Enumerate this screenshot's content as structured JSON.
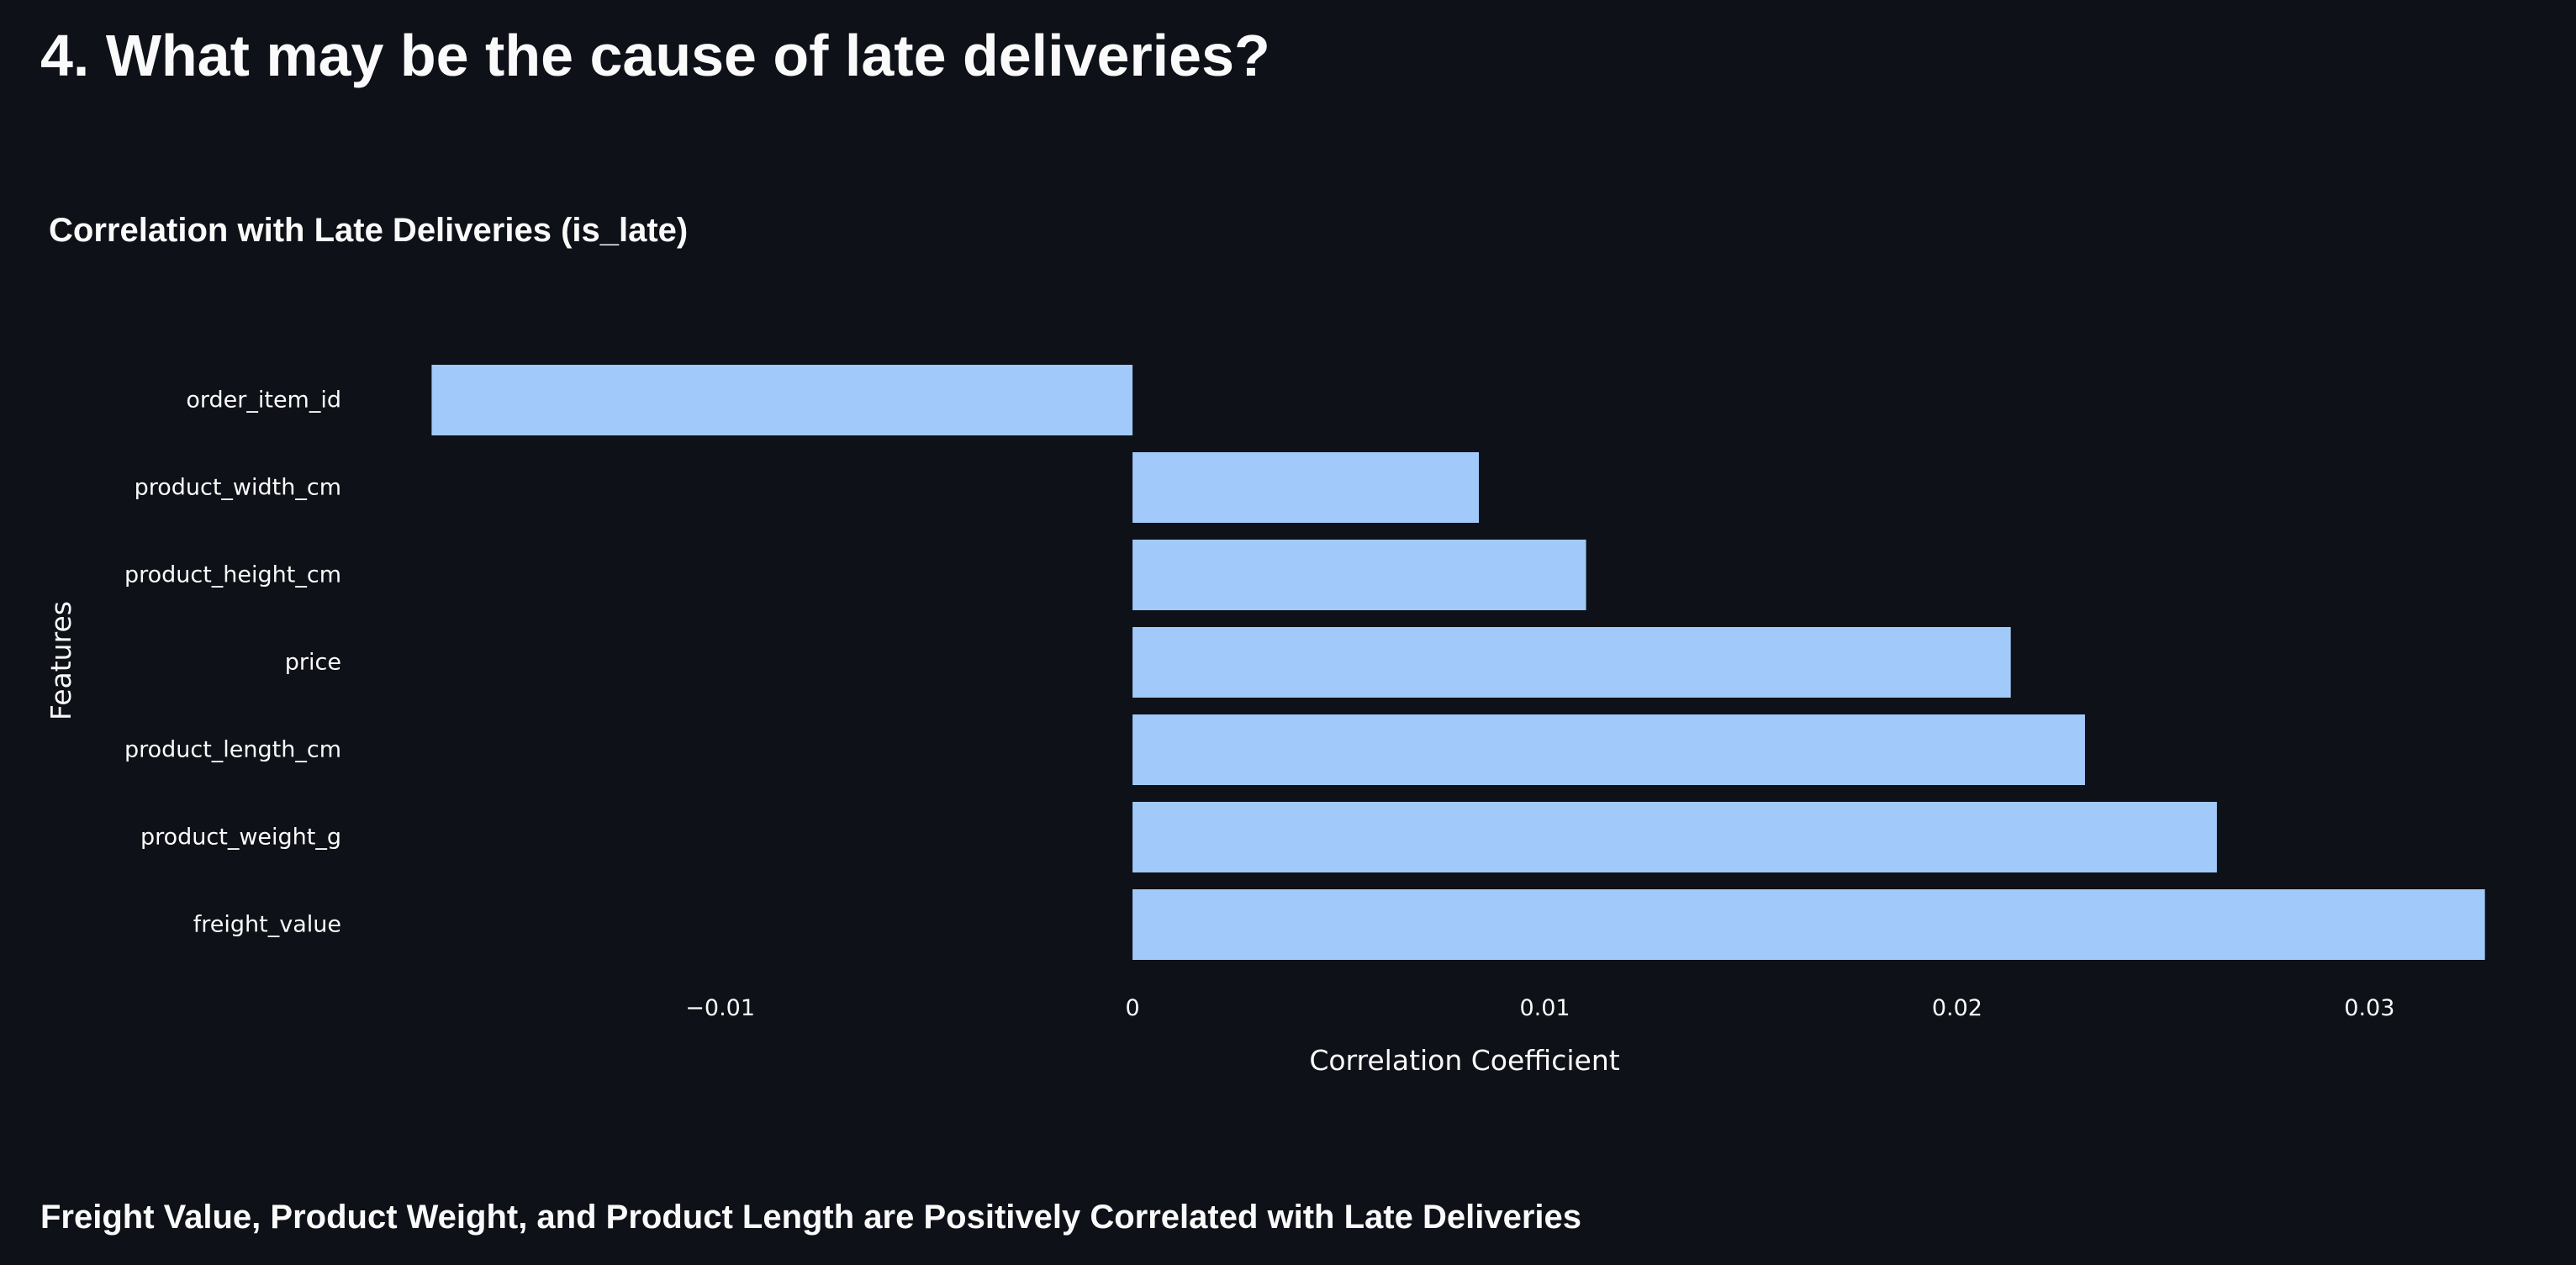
{
  "page": {
    "title": "4. What may be the cause of late deliveries?",
    "caption": "Freight Value, Product Weight, and Product Length are Positively Correlated with Late Deliveries"
  },
  "chart_data": {
    "type": "bar",
    "orientation": "horizontal",
    "title": "Correlation with Late Deliveries (is_late)",
    "xlabel": "Correlation Coefficient",
    "ylabel": "Features",
    "categories": [
      "order_item_id",
      "product_width_cm",
      "product_height_cm",
      "price",
      "product_length_cm",
      "product_weight_g",
      "freight_value"
    ],
    "values": [
      -0.017,
      0.0084,
      0.011,
      0.0213,
      0.0231,
      0.0263,
      0.0328
    ],
    "xlim": [
      -0.0187,
      0.0335
    ],
    "xticks": [
      -0.01,
      0,
      0.01,
      0.02,
      0.03
    ],
    "xtick_labels": [
      "−0.01",
      "0",
      "0.01",
      "0.02",
      "0.03"
    ],
    "bar_color": "#a1c9f9",
    "grid": false,
    "legend": "none"
  }
}
